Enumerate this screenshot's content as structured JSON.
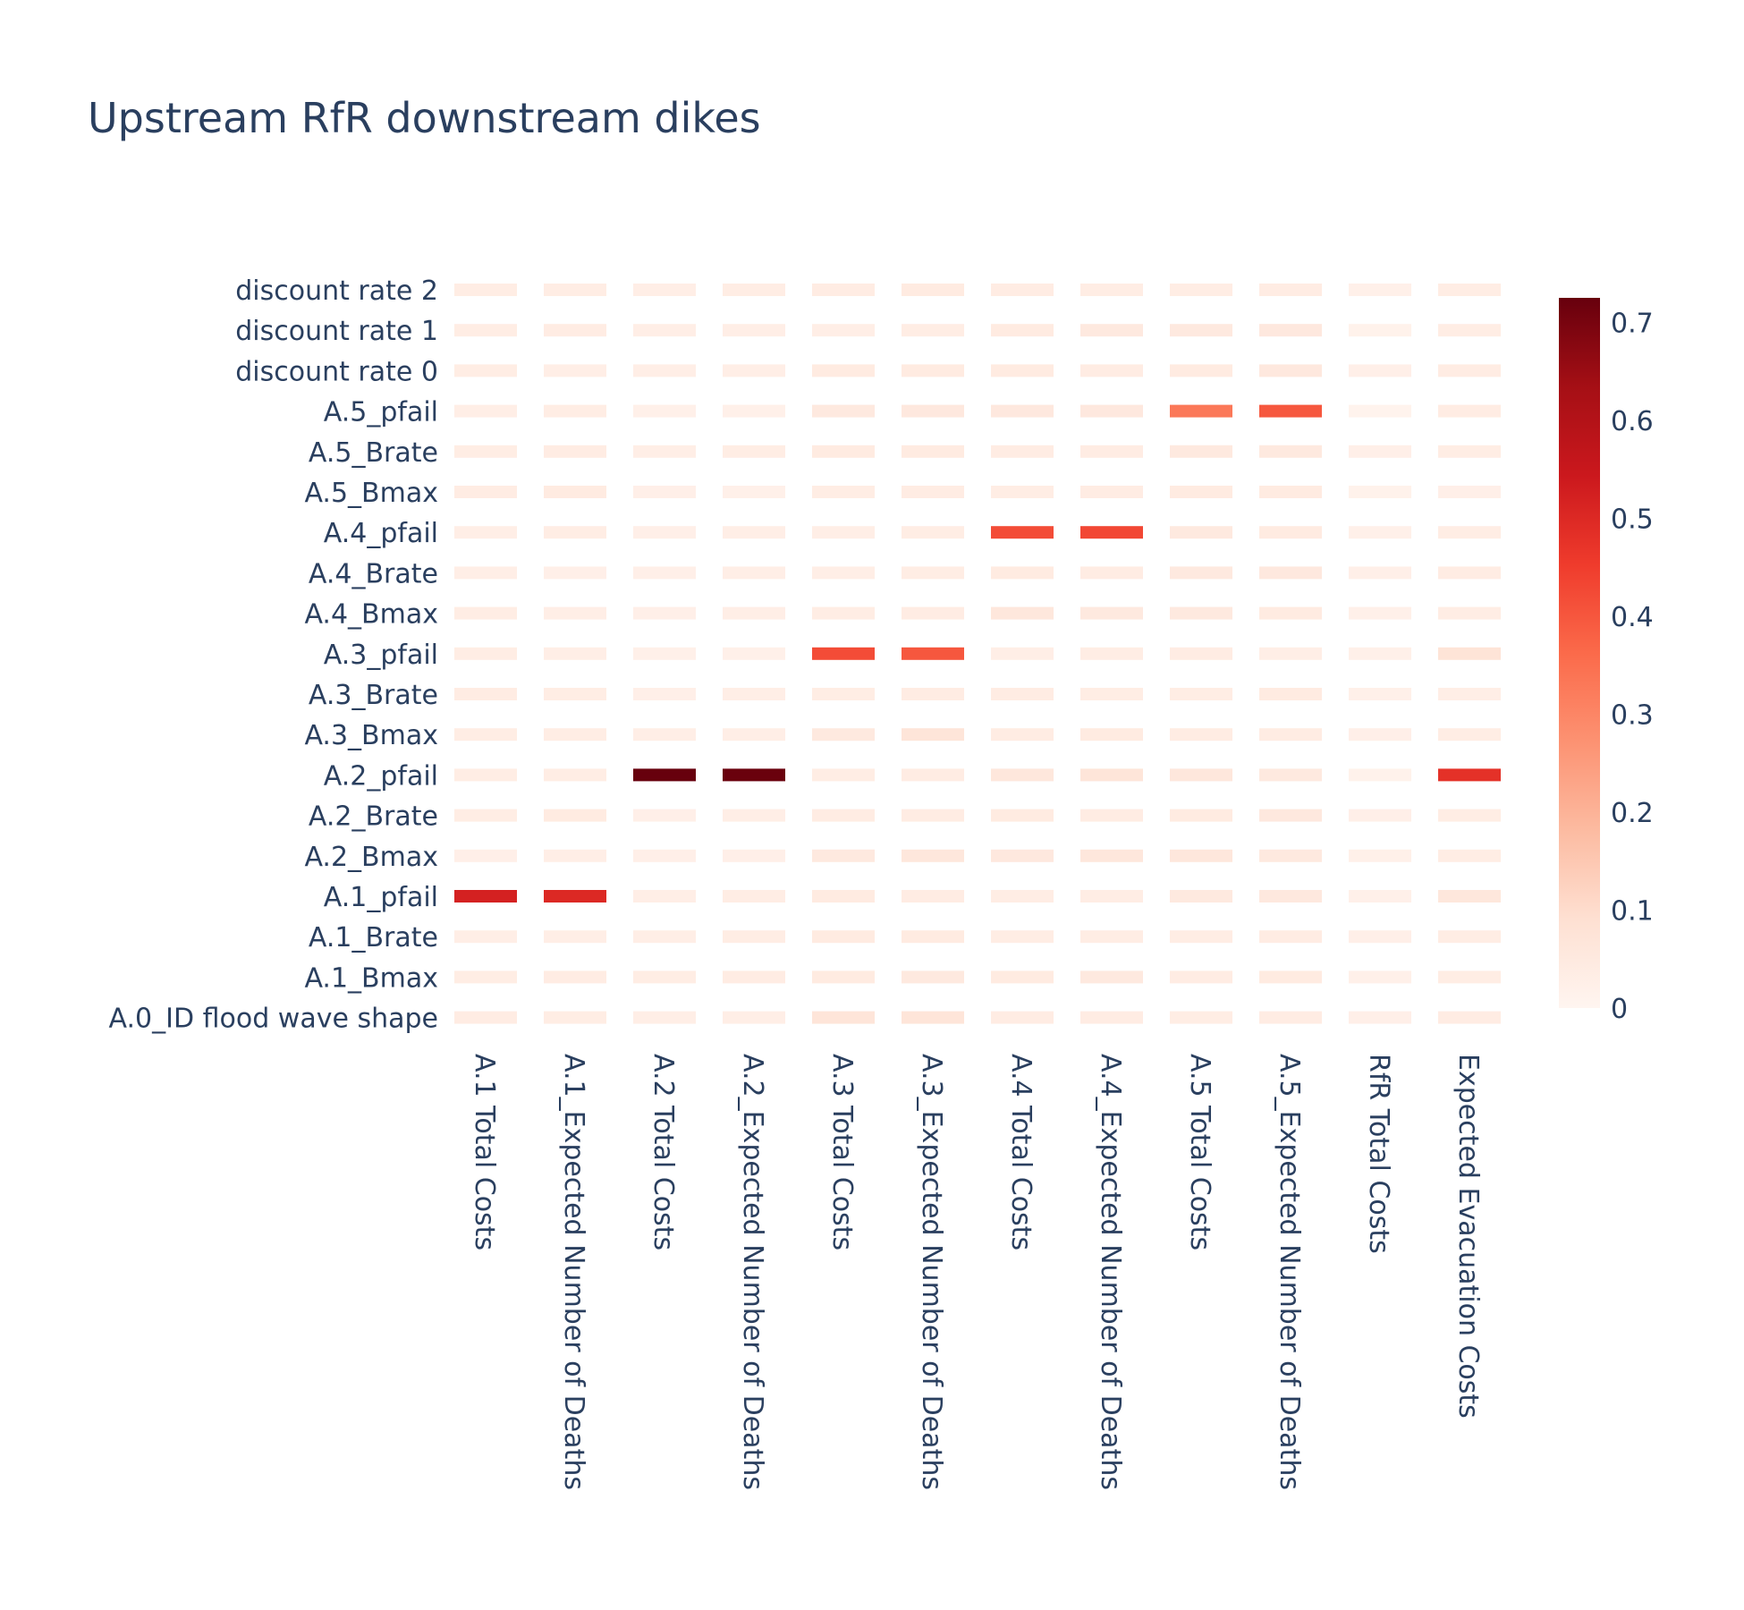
{
  "chart_data": {
    "type": "heatmap",
    "title": "Upstream RfR downstream dikes",
    "colorscale": "Reds",
    "zrange": [
      0,
      0.725
    ],
    "colorbar_ticks": [
      "0",
      "0.1",
      "0.2",
      "0.3",
      "0.4",
      "0.5",
      "0.6",
      "0.7"
    ],
    "colorbar_tick_values": [
      0,
      0.1,
      0.2,
      0.3,
      0.4,
      0.5,
      0.6,
      0.7
    ],
    "x": [
      "A.1 Total Costs",
      "A.1_Expected Number of Deaths",
      "A.2 Total Costs",
      "A.2_Expected Number of Deaths",
      "A.3 Total Costs",
      "A.3_Expected Number of Deaths",
      "A.4 Total Costs",
      "A.4_Expected Number of Deaths",
      "A.5 Total Costs",
      "A.5_Expected Number of Deaths",
      "RfR Total Costs",
      "Expected Evacuation Costs"
    ],
    "y": [
      "A.0_ID flood wave shape",
      "A.1_Bmax",
      "A.1_Brate",
      "A.1_pfail",
      "A.2_Bmax",
      "A.2_Brate",
      "A.2_pfail",
      "A.3_Bmax",
      "A.3_Brate",
      "A.3_pfail",
      "A.4_Bmax",
      "A.4_Brate",
      "A.4_pfail",
      "A.5_Bmax",
      "A.5_Brate",
      "A.5_pfail",
      "discount rate 0",
      "discount rate 1",
      "discount rate 2"
    ],
    "z": [
      [
        0.04,
        0.035,
        0.03,
        0.03,
        0.07,
        0.07,
        0.04,
        0.04,
        0.035,
        0.04,
        0.025,
        0.04
      ],
      [
        0.035,
        0.04,
        0.035,
        0.04,
        0.045,
        0.05,
        0.045,
        0.05,
        0.04,
        0.045,
        0.02,
        0.035
      ],
      [
        0.03,
        0.03,
        0.03,
        0.035,
        0.045,
        0.045,
        0.035,
        0.035,
        0.035,
        0.04,
        0.025,
        0.035
      ],
      [
        0.52,
        0.5,
        0.03,
        0.035,
        0.045,
        0.04,
        0.035,
        0.035,
        0.05,
        0.055,
        0.02,
        0.06
      ],
      [
        0.025,
        0.03,
        0.025,
        0.025,
        0.05,
        0.06,
        0.055,
        0.06,
        0.06,
        0.05,
        0.02,
        0.035
      ],
      [
        0.035,
        0.045,
        0.025,
        0.03,
        0.04,
        0.04,
        0.045,
        0.04,
        0.045,
        0.055,
        0.025,
        0.035
      ],
      [
        0.035,
        0.035,
        0.725,
        0.72,
        0.035,
        0.04,
        0.06,
        0.07,
        0.06,
        0.05,
        0.015,
        0.48
      ],
      [
        0.035,
        0.035,
        0.03,
        0.03,
        0.05,
        0.07,
        0.04,
        0.045,
        0.04,
        0.04,
        0.025,
        0.035
      ],
      [
        0.04,
        0.035,
        0.025,
        0.03,
        0.035,
        0.04,
        0.04,
        0.035,
        0.035,
        0.045,
        0.02,
        0.03
      ],
      [
        0.035,
        0.03,
        0.02,
        0.02,
        0.42,
        0.4,
        0.03,
        0.035,
        0.04,
        0.03,
        0.02,
        0.075
      ],
      [
        0.035,
        0.03,
        0.025,
        0.03,
        0.035,
        0.04,
        0.06,
        0.05,
        0.05,
        0.045,
        0.02,
        0.035
      ],
      [
        0.03,
        0.025,
        0.025,
        0.03,
        0.03,
        0.035,
        0.045,
        0.04,
        0.05,
        0.055,
        0.025,
        0.04
      ],
      [
        0.03,
        0.035,
        0.025,
        0.03,
        0.03,
        0.035,
        0.42,
        0.43,
        0.05,
        0.045,
        0.02,
        0.035
      ],
      [
        0.04,
        0.045,
        0.025,
        0.02,
        0.035,
        0.04,
        0.035,
        0.04,
        0.045,
        0.045,
        0.015,
        0.025
      ],
      [
        0.035,
        0.04,
        0.03,
        0.035,
        0.045,
        0.045,
        0.04,
        0.04,
        0.05,
        0.05,
        0.025,
        0.035
      ],
      [
        0.03,
        0.035,
        0.02,
        0.02,
        0.05,
        0.055,
        0.055,
        0.055,
        0.33,
        0.4,
        0.01,
        0.04
      ],
      [
        0.035,
        0.03,
        0.03,
        0.03,
        0.045,
        0.045,
        0.045,
        0.04,
        0.045,
        0.055,
        0.025,
        0.04
      ],
      [
        0.035,
        0.04,
        0.03,
        0.03,
        0.03,
        0.035,
        0.045,
        0.05,
        0.05,
        0.055,
        0.015,
        0.035
      ],
      [
        0.035,
        0.035,
        0.03,
        0.035,
        0.04,
        0.045,
        0.04,
        0.035,
        0.035,
        0.04,
        0.02,
        0.035
      ]
    ]
  }
}
